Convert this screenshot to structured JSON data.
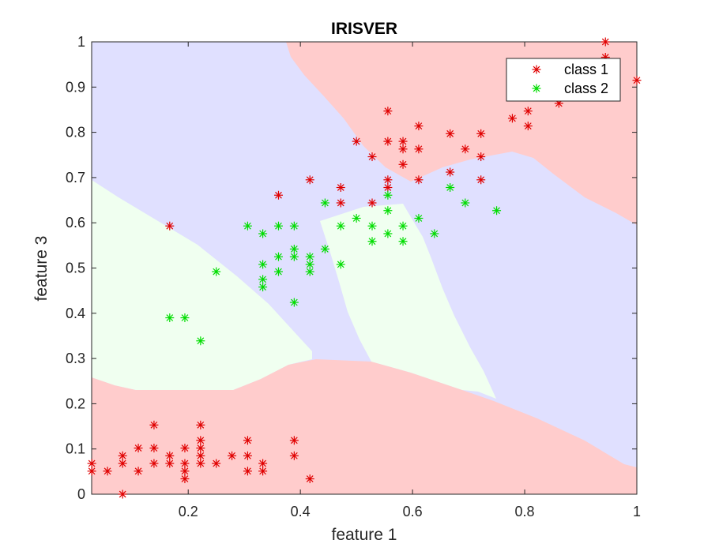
{
  "chart_data": {
    "type": "scatter",
    "title": "IRISVER",
    "xlabel": "feature 1",
    "ylabel": "feature 3",
    "xlim": [
      0.0278,
      1.0
    ],
    "ylim": [
      0.0,
      1.0
    ],
    "x_ticks": [
      "0.2",
      "0.4",
      "0.6",
      "0.8",
      "1"
    ],
    "y_ticks": [
      "0",
      "0.1",
      "0.2",
      "0.3",
      "0.4",
      "0.5",
      "0.6",
      "0.7",
      "0.8",
      "0.9",
      "1"
    ],
    "grid": false,
    "legend_position": "top-right",
    "background_regions": {
      "description": "classifier decision regions",
      "colors": {
        "class1": "#ffcccc",
        "class2": "#f0fff0",
        "other": "#e0e0ff"
      }
    },
    "series": [
      {
        "name": "class 1",
        "color": "#e00000",
        "marker": "asterisk",
        "points": [
          [
            0.028,
            0.068
          ],
          [
            0.028,
            0.051
          ],
          [
            0.056,
            0.051
          ],
          [
            0.083,
            0.085
          ],
          [
            0.083,
            0.068
          ],
          [
            0.083,
            0.0
          ],
          [
            0.111,
            0.102
          ],
          [
            0.111,
            0.051
          ],
          [
            0.139,
            0.153
          ],
          [
            0.139,
            0.102
          ],
          [
            0.139,
            0.068
          ],
          [
            0.167,
            0.085
          ],
          [
            0.167,
            0.068
          ],
          [
            0.194,
            0.102
          ],
          [
            0.194,
            0.068
          ],
          [
            0.194,
            0.051
          ],
          [
            0.194,
            0.034
          ],
          [
            0.222,
            0.153
          ],
          [
            0.222,
            0.119
          ],
          [
            0.222,
            0.102
          ],
          [
            0.222,
            0.085
          ],
          [
            0.222,
            0.068
          ],
          [
            0.25,
            0.068
          ],
          [
            0.278,
            0.085
          ],
          [
            0.306,
            0.119
          ],
          [
            0.306,
            0.085
          ],
          [
            0.306,
            0.051
          ],
          [
            0.333,
            0.068
          ],
          [
            0.333,
            0.051
          ],
          [
            0.389,
            0.119
          ],
          [
            0.389,
            0.085
          ],
          [
            0.417,
            0.034
          ],
          [
            0.167,
            0.593
          ],
          [
            0.361,
            0.661
          ],
          [
            0.417,
            0.695
          ],
          [
            0.472,
            0.678
          ],
          [
            0.472,
            0.644
          ],
          [
            0.5,
            0.78
          ],
          [
            0.528,
            0.746
          ],
          [
            0.528,
            0.644
          ],
          [
            0.556,
            0.847
          ],
          [
            0.556,
            0.78
          ],
          [
            0.556,
            0.695
          ],
          [
            0.556,
            0.678
          ],
          [
            0.583,
            0.78
          ],
          [
            0.583,
            0.763
          ],
          [
            0.583,
            0.729
          ],
          [
            0.611,
            0.814
          ],
          [
            0.611,
            0.763
          ],
          [
            0.611,
            0.695
          ],
          [
            0.667,
            0.797
          ],
          [
            0.667,
            0.712
          ],
          [
            0.694,
            0.763
          ],
          [
            0.722,
            0.797
          ],
          [
            0.722,
            0.746
          ],
          [
            0.722,
            0.695
          ],
          [
            0.778,
            0.831
          ],
          [
            0.806,
            0.847
          ],
          [
            0.806,
            0.814
          ],
          [
            0.861,
            0.864
          ],
          [
            0.944,
            1.0
          ],
          [
            0.944,
            0.966
          ],
          [
            1.0,
            0.915
          ]
        ]
      },
      {
        "name": "class 2",
        "color": "#00dd00",
        "marker": "asterisk",
        "points": [
          [
            0.167,
            0.39
          ],
          [
            0.194,
            0.39
          ],
          [
            0.222,
            0.339
          ],
          [
            0.25,
            0.492
          ],
          [
            0.306,
            0.593
          ],
          [
            0.333,
            0.576
          ],
          [
            0.333,
            0.508
          ],
          [
            0.333,
            0.475
          ],
          [
            0.333,
            0.458
          ],
          [
            0.361,
            0.593
          ],
          [
            0.361,
            0.525
          ],
          [
            0.361,
            0.492
          ],
          [
            0.389,
            0.593
          ],
          [
            0.389,
            0.542
          ],
          [
            0.389,
            0.525
          ],
          [
            0.389,
            0.424
          ],
          [
            0.417,
            0.525
          ],
          [
            0.417,
            0.508
          ],
          [
            0.417,
            0.492
          ],
          [
            0.444,
            0.644
          ],
          [
            0.444,
            0.542
          ],
          [
            0.472,
            0.593
          ],
          [
            0.472,
            0.508
          ],
          [
            0.5,
            0.61
          ],
          [
            0.528,
            0.593
          ],
          [
            0.528,
            0.559
          ],
          [
            0.556,
            0.661
          ],
          [
            0.556,
            0.627
          ],
          [
            0.556,
            0.576
          ],
          [
            0.583,
            0.593
          ],
          [
            0.583,
            0.559
          ],
          [
            0.611,
            0.61
          ],
          [
            0.639,
            0.576
          ],
          [
            0.667,
            0.678
          ],
          [
            0.694,
            0.644
          ],
          [
            0.75,
            0.627
          ]
        ]
      }
    ]
  }
}
